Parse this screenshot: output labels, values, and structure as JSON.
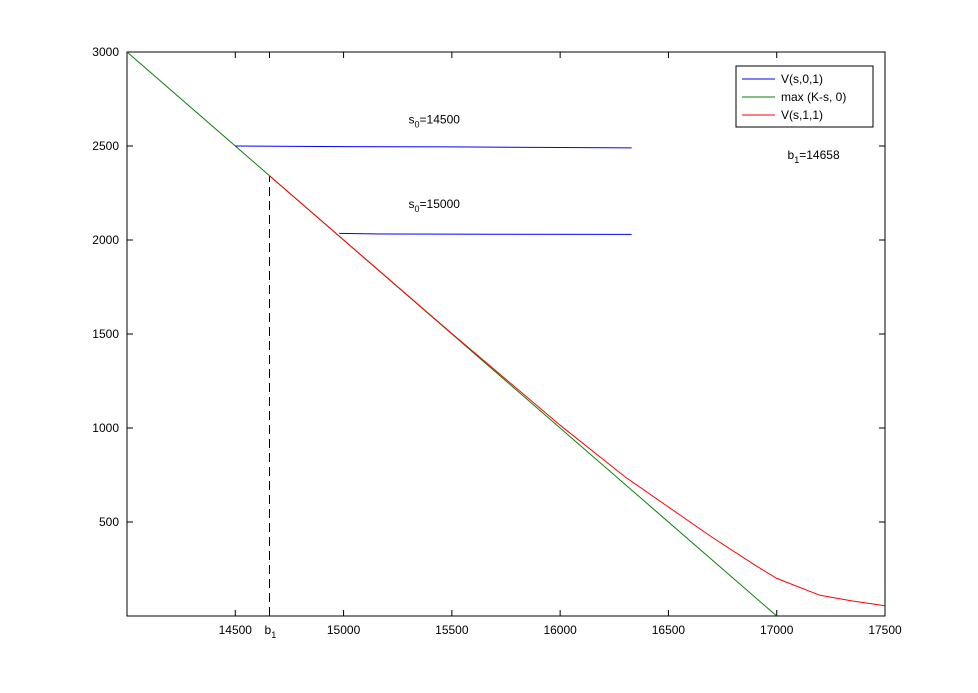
{
  "chart_data": {
    "type": "line",
    "xlim": [
      14000,
      17500
    ],
    "ylim": [
      0,
      3000
    ],
    "x_ticks": [
      14500,
      15000,
      15500,
      16000,
      16500,
      17000,
      17500
    ],
    "y_ticks": [
      500,
      1000,
      1500,
      2000,
      2500,
      3000
    ],
    "extra_x_tick": {
      "main": "b",
      "sub": "1",
      "x": 14658
    },
    "grid": false,
    "legend_position": "top-right",
    "colors": {
      "blue": "#0000ff",
      "green": "#008000",
      "red": "#ff0000",
      "axis": "#000000"
    },
    "series": [
      {
        "name": "V(s,0,1)",
        "color": "#0000ff",
        "x": [
          14500,
          15000,
          15500,
          16000,
          16330
        ],
        "y": [
          2500,
          2497,
          2495,
          2492,
          2490
        ]
      },
      {
        "name": "max (K-s, 0)",
        "color": "#008000",
        "x": [
          14000,
          17000
        ],
        "y": [
          3000,
          0
        ]
      },
      {
        "name": "V(s,1,1)",
        "color": "#ff0000",
        "x": [
          14658,
          15000,
          15500,
          16000,
          16300,
          16500,
          16700,
          16900,
          17000,
          17200,
          17350,
          17500
        ],
        "y": [
          2342,
          2000,
          1502,
          1015,
          740,
          580,
          420,
          270,
          200,
          110,
          80,
          55
        ]
      },
      {
        "name": "",
        "color": "#0000ff",
        "x": [
          14980,
          15200,
          15700,
          16330
        ],
        "y": [
          2035,
          2032,
          2031,
          2030
        ]
      }
    ],
    "vertical_dashed": {
      "x": 14658,
      "y_top": 2342
    },
    "legend": [
      "V(s,0,1)",
      "max (K-s, 0)",
      "V(s,1,1)"
    ],
    "annotations": [
      {
        "main": "s",
        "sub": "0",
        "rest": "=14500",
        "x": 15300,
        "y": 2620
      },
      {
        "main": "s",
        "sub": "0",
        "rest": "=15000",
        "x": 15300,
        "y": 2170
      },
      {
        "main": "b",
        "sub": "1",
        "rest": "=14658",
        "x": 17050,
        "y": 2430
      }
    ]
  }
}
